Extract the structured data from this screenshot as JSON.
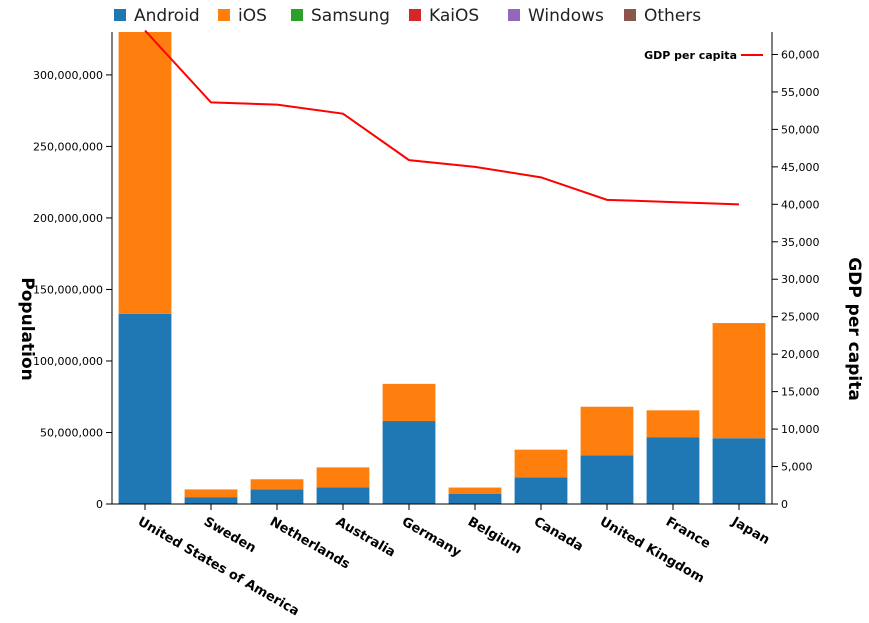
{
  "chart_data": {
    "type": "bar",
    "stacked": true,
    "categories": [
      "United States of America",
      "Sweden",
      "Netherlands",
      "Australia",
      "Germany",
      "Belgium",
      "Canada",
      "United Kingdom",
      "France",
      "Japan"
    ],
    "series": [
      {
        "name": "Android",
        "color": "#1f77b4",
        "values": [
          133000000,
          4800000,
          10300000,
          11600000,
          58000000,
          7000000,
          18500000,
          34000000,
          46500000,
          46000000
        ]
      },
      {
        "name": "iOS",
        "color": "#ff7f0e",
        "values": [
          197000000,
          5400000,
          7000000,
          14000000,
          26000000,
          4500000,
          19500000,
          34000000,
          19000000,
          80500000
        ]
      },
      {
        "name": "Samsung",
        "color": "#2ca02c",
        "values": [
          0,
          0,
          0,
          0,
          0,
          0,
          0,
          0,
          0,
          0
        ]
      },
      {
        "name": "KaiOS",
        "color": "#d62728",
        "values": [
          0,
          0,
          0,
          0,
          0,
          0,
          0,
          0,
          0,
          0
        ]
      },
      {
        "name": "Windows",
        "color": "#9467bd",
        "values": [
          0,
          0,
          0,
          0,
          0,
          0,
          0,
          0,
          0,
          0
        ]
      },
      {
        "name": "Others",
        "color": "#8c564b",
        "values": [
          0,
          0,
          0,
          0,
          0,
          0,
          0,
          0,
          0,
          0
        ]
      }
    ],
    "line_series": {
      "name": "GDP per capita",
      "color": "#ff0000",
      "values": [
        63200,
        53600,
        53300,
        52100,
        45900,
        45000,
        43600,
        40600,
        40300,
        40000
      ]
    },
    "ylabel": "Population",
    "ylabel_right": "GDP per capita",
    "ylim": [
      0,
      330000000
    ],
    "yticks": [
      0,
      50000000,
      100000000,
      150000000,
      200000000,
      250000000,
      300000000
    ],
    "ytick_labels": [
      "0",
      "50,000,000",
      "100,000,000",
      "150,000,000",
      "200,000,000",
      "250,000,000",
      "300,000,000"
    ],
    "ylim_right": [
      0,
      63000
    ],
    "yticks_right": [
      0,
      5000,
      10000,
      15000,
      20000,
      25000,
      30000,
      35000,
      40000,
      45000,
      50000,
      55000,
      60000
    ],
    "ytick_labels_right": [
      "0",
      "5,000",
      "10,000",
      "15,000",
      "20,000",
      "25,000",
      "30,000",
      "35,000",
      "40,000",
      "45,000",
      "50,000",
      "55,000",
      "60,000"
    ],
    "legend_position": "top",
    "line_legend_position": "top-right",
    "grid": false
  }
}
